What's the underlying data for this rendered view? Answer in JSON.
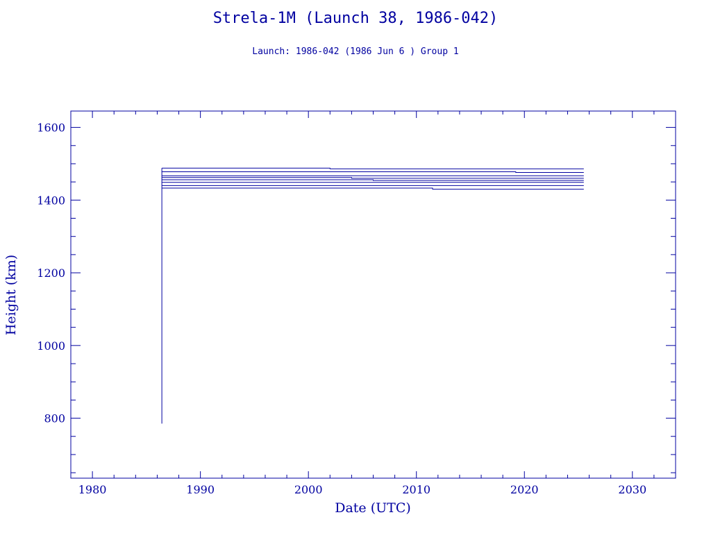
{
  "chart_data": {
    "type": "line",
    "title": "Strela-1M (Launch 38, 1986-042)",
    "subtitle": "Launch: 1986-042  (1986 Jun  6 )  Group 1",
    "xlabel": "Date (UTC)",
    "ylabel": "Height (km)",
    "xlim": [
      1978,
      2034
    ],
    "ylim": [
      635,
      1645
    ],
    "x_ticks": [
      1980,
      1990,
      2000,
      2010,
      2020,
      2030
    ],
    "y_ticks": [
      800,
      1000,
      1200,
      1400,
      1600
    ],
    "grid": false,
    "color": "#0000a0",
    "launch_drop": {
      "x": 1986.43,
      "y_from": 1488,
      "y_to": 785
    },
    "series": [
      {
        "points": [
          [
            1986.43,
            1488
          ],
          [
            2002.0,
            1488
          ],
          [
            2002.0,
            1486
          ],
          [
            2025.5,
            1486
          ]
        ]
      },
      {
        "points": [
          [
            1986.43,
            1478
          ],
          [
            2019.2,
            1478
          ],
          [
            2019.2,
            1476
          ],
          [
            2025.5,
            1476
          ]
        ]
      },
      {
        "points": [
          [
            1986.43,
            1467
          ],
          [
            2025.5,
            1467
          ]
        ]
      },
      {
        "points": [
          [
            1986.43,
            1462
          ],
          [
            2004.0,
            1462
          ],
          [
            2004.0,
            1460
          ],
          [
            2025.5,
            1460
          ]
        ]
      },
      {
        "points": [
          [
            1986.43,
            1456
          ],
          [
            2006.0,
            1456
          ],
          [
            2006.0,
            1454
          ],
          [
            2025.5,
            1454
          ]
        ]
      },
      {
        "points": [
          [
            1986.43,
            1449
          ],
          [
            2025.5,
            1449
          ]
        ]
      },
      {
        "points": [
          [
            1986.43,
            1440
          ],
          [
            2025.5,
            1440
          ]
        ]
      },
      {
        "points": [
          [
            1986.43,
            1433
          ],
          [
            2011.5,
            1433
          ],
          [
            2011.5,
            1430
          ],
          [
            2025.5,
            1430
          ]
        ]
      }
    ]
  }
}
